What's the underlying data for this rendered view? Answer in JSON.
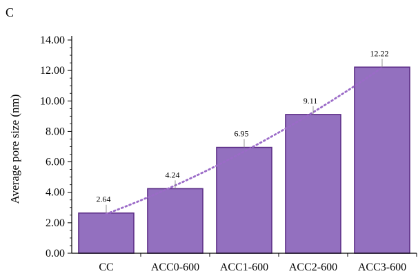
{
  "panel_label": "C",
  "chart_data": {
    "type": "bar",
    "categories": [
      "CC",
      "ACC0-600",
      "ACC1-600",
      "ACC2-600",
      "ACC3-600"
    ],
    "values": [
      2.64,
      4.24,
      6.95,
      9.11,
      12.22
    ],
    "data_labels": [
      "2.64",
      "4.24",
      "6.95",
      "9.11",
      "12.22"
    ],
    "title": "",
    "xlabel": "",
    "ylabel": "Average pore size (nm)",
    "ylim": [
      0,
      14
    ],
    "yticks": [
      0,
      2,
      4,
      6,
      8,
      10,
      12,
      14
    ],
    "ytick_labels": [
      "0.00",
      "2.00",
      "4.00",
      "6.00",
      "8.00",
      "10.00",
      "12.00",
      "14.00"
    ],
    "grid": false,
    "trendline": "dotted polynomial",
    "colors": {
      "bar_fill": "#9370bf",
      "bar_edge": "#5b2c86",
      "trendline": "#9b6bc8"
    }
  }
}
